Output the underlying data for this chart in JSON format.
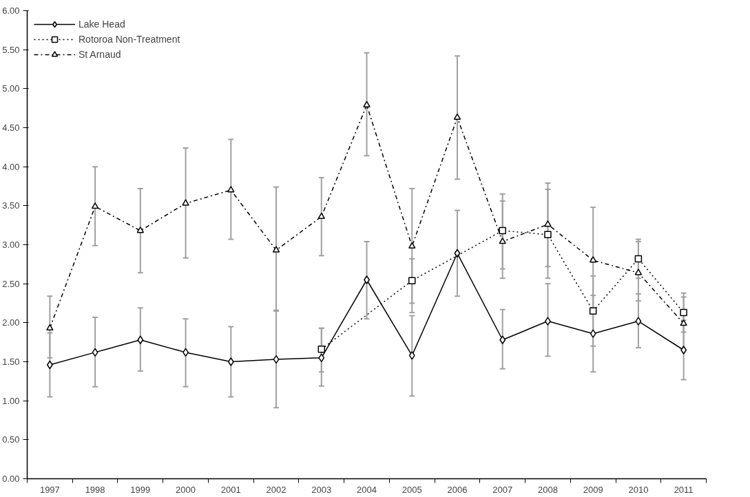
{
  "chart_data": {
    "type": "line",
    "categories": [
      "1997",
      "1998",
      "1999",
      "2000",
      "2001",
      "2002",
      "2003",
      "2004",
      "2005",
      "2006",
      "2007",
      "2008",
      "2009",
      "2010",
      "2011"
    ],
    "ylim": [
      0,
      6
    ],
    "yticks": [
      {
        "value": 0,
        "label": "0.00"
      },
      {
        "value": 0.5,
        "label": "0.50"
      },
      {
        "value": 1,
        "label": "1.00"
      },
      {
        "value": 1.5,
        "label": "1.50"
      },
      {
        "value": 2,
        "label": "2.00"
      },
      {
        "value": 2.5,
        "label": "2.50"
      },
      {
        "value": 3,
        "label": "3.00"
      },
      {
        "value": 3.5,
        "label": "3.50"
      },
      {
        "value": 4,
        "label": "4.00"
      },
      {
        "value": 4.5,
        "label": "4.50"
      },
      {
        "value": 5,
        "label": "5.00"
      },
      {
        "value": 5.5,
        "label": "5.50"
      },
      {
        "value": 6,
        "label": "6.00"
      }
    ],
    "grid": false,
    "legend": "top left",
    "series": [
      {
        "name": "Lake Head",
        "color": "#000000",
        "marker": "diamond",
        "line_style": "solid",
        "values": [
          1.46,
          1.62,
          1.78,
          1.62,
          1.5,
          1.53,
          1.55,
          2.55,
          1.58,
          2.89,
          1.78,
          2.02,
          1.86,
          2.02,
          1.65
        ],
        "errors": [
          [
            1.05,
            1.87
          ],
          [
            1.18,
            2.07
          ],
          [
            1.38,
            2.19
          ],
          [
            1.18,
            2.05
          ],
          [
            1.05,
            1.95
          ],
          [
            0.91,
            2.15
          ],
          [
            1.19,
            1.93
          ],
          [
            2.05,
            3.04
          ],
          [
            1.06,
            2.09
          ],
          [
            2.34,
            3.44
          ],
          [
            1.41,
            2.17
          ],
          [
            1.57,
            2.5
          ],
          [
            1.37,
            2.35
          ],
          [
            1.68,
            2.37
          ],
          [
            1.27,
            2.03
          ]
        ]
      },
      {
        "name": "Rotoroa Non-Treatment",
        "color": "#000000",
        "marker": "square",
        "line_style": "dotted",
        "values": [
          null,
          null,
          null,
          null,
          null,
          null,
          1.66,
          null,
          2.54,
          null,
          3.18,
          3.13,
          2.15,
          2.82,
          2.13
        ],
        "errors": [
          null,
          null,
          null,
          null,
          null,
          null,
          [
            1.37,
            1.93
          ],
          null,
          [
            2.25,
            2.82
          ],
          null,
          [
            2.69,
            3.65
          ],
          [
            2.57,
            3.71
          ],
          [
            1.7,
            2.6
          ],
          [
            2.57,
            3.07
          ],
          [
            1.88,
            2.38
          ]
        ]
      },
      {
        "name": "St Arnaud",
        "color": "#000000",
        "marker": "triangle",
        "line_style": "dashdot",
        "values": [
          1.93,
          3.49,
          3.18,
          3.53,
          3.7,
          2.93,
          3.36,
          4.79,
          2.98,
          4.63,
          3.04,
          3.26,
          2.8,
          2.64,
          1.99
        ],
        "errors": [
          [
            1.55,
            2.34
          ],
          [
            2.99,
            4.0
          ],
          [
            2.64,
            3.72
          ],
          [
            2.83,
            4.24
          ],
          [
            3.07,
            4.35
          ],
          [
            2.16,
            3.74
          ],
          [
            2.86,
            3.86
          ],
          [
            4.14,
            5.46
          ],
          [
            2.13,
            3.72
          ],
          [
            3.84,
            5.42
          ],
          [
            2.57,
            3.56
          ],
          [
            2.72,
            3.79
          ],
          [
            2.12,
            3.48
          ],
          [
            2.28,
            3.04
          ],
          [
            1.65,
            2.33
          ]
        ]
      }
    ]
  }
}
